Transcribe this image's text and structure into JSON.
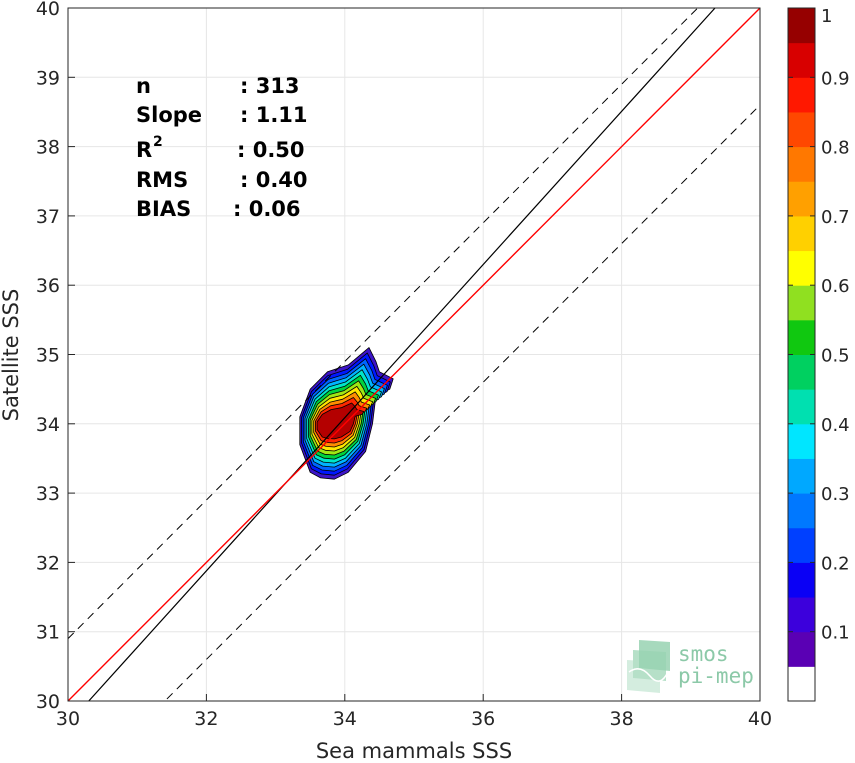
{
  "chart_data": {
    "type": "scatter",
    "xlabel": "Sea mammals SSS",
    "ylabel": "Satellite SSS",
    "xlim": [
      30,
      40
    ],
    "ylim": [
      30,
      40
    ],
    "xticks": [
      30,
      32,
      34,
      36,
      38,
      40
    ],
    "yticks": [
      30,
      31,
      32,
      33,
      34,
      35,
      36,
      37,
      38,
      39,
      40
    ],
    "grid": true,
    "lines": {
      "identity": {
        "slope": 1,
        "intercept": 0,
        "color": "#ff0000"
      },
      "fit": {
        "x": [
          30.3,
          39.35
        ],
        "y": [
          30,
          40
        ],
        "color": "#000000"
      },
      "upper_bound": {
        "offset": 0.9,
        "color": "#000000",
        "style": "dashed"
      },
      "lower_bound": {
        "offset": -1.4,
        "color": "#000000",
        "style": "dashed"
      }
    },
    "density_peak": {
      "x": 33.85,
      "y": 34.0
    },
    "stats": [
      {
        "label": "n",
        "value": ": 313"
      },
      {
        "label": "Slope",
        "value": ": 1.11"
      },
      {
        "label": "R",
        "sup": "2",
        "value": ": 0.50"
      },
      {
        "label": "RMS",
        "value": ": 0.40"
      },
      {
        "label": "BIAS",
        "value": ": 0.06"
      }
    ],
    "colorbar": {
      "range": [
        0,
        1
      ],
      "ticks": [
        "0.1",
        "0.2",
        "0.3",
        "0.4",
        "0.5",
        "0.6",
        "0.7",
        "0.8",
        "0.9",
        "1"
      ],
      "tick_values": [
        0.1,
        0.2,
        0.3,
        0.4,
        0.5,
        0.6,
        0.7,
        0.8,
        0.9,
        1.0
      ],
      "colors": [
        "#ffffff",
        "#5a00b4",
        "#3c00dc",
        "#0a00f5",
        "#0040ff",
        "#0078ff",
        "#00a8ff",
        "#00e6ff",
        "#00e0b0",
        "#00d060",
        "#10c810",
        "#90e020",
        "#ffff00",
        "#ffd000",
        "#ffa000",
        "#ff7800",
        "#ff4800",
        "#ff1800",
        "#d80000",
        "#960000"
      ]
    },
    "contour_colors": [
      "#3c14c8",
      "#0018ff",
      "#0064ff",
      "#00b4ff",
      "#00e6c8",
      "#00d23c",
      "#a0e614",
      "#ffe600",
      "#ff8c00",
      "#ff2800",
      "#b40000"
    ]
  },
  "logo": {
    "line1": "smos",
    "line2": "pi-mep"
  }
}
